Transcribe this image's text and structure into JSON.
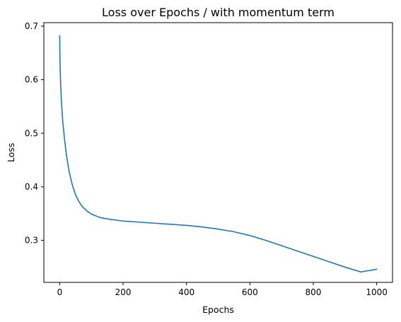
{
  "chart_data": {
    "type": "line",
    "title": "Loss over Epochs / with momentum term",
    "xlabel": "Epochs",
    "ylabel": "Loss",
    "xlim": [
      -50,
      1050
    ],
    "ylim": [
      0.2215,
      0.7065
    ],
    "xticks": [
      0,
      200,
      400,
      600,
      800,
      1000
    ],
    "yticks": [
      0.3,
      0.4,
      0.5,
      0.6,
      0.7
    ],
    "xtick_labels": [
      "0",
      "200",
      "400",
      "600",
      "800",
      "1000"
    ],
    "ytick_labels": [
      "0.3",
      "0.4",
      "0.5",
      "0.6",
      "0.7"
    ],
    "grid": false,
    "legend": "none",
    "series": [
      {
        "color": "#1f77b4",
        "x": [
          0,
          1,
          2,
          3,
          5,
          8,
          10,
          15,
          20,
          25,
          30,
          40,
          50,
          60,
          70,
          80,
          90,
          100,
          125,
          150,
          200,
          250,
          300,
          350,
          400,
          450,
          500,
          550,
          600,
          650,
          700,
          750,
          800,
          850,
          900,
          950,
          1000
        ],
        "y": [
          0.682,
          0.635,
          0.61,
          0.59,
          0.565,
          0.535,
          0.52,
          0.49,
          0.465,
          0.445,
          0.428,
          0.403,
          0.385,
          0.373,
          0.364,
          0.358,
          0.353,
          0.349,
          0.343,
          0.34,
          0.336,
          0.334,
          0.332,
          0.33,
          0.328,
          0.325,
          0.321,
          0.316,
          0.309,
          0.3,
          0.29,
          0.28,
          0.27,
          0.26,
          0.25,
          0.241,
          0.246
        ]
      }
    ]
  }
}
